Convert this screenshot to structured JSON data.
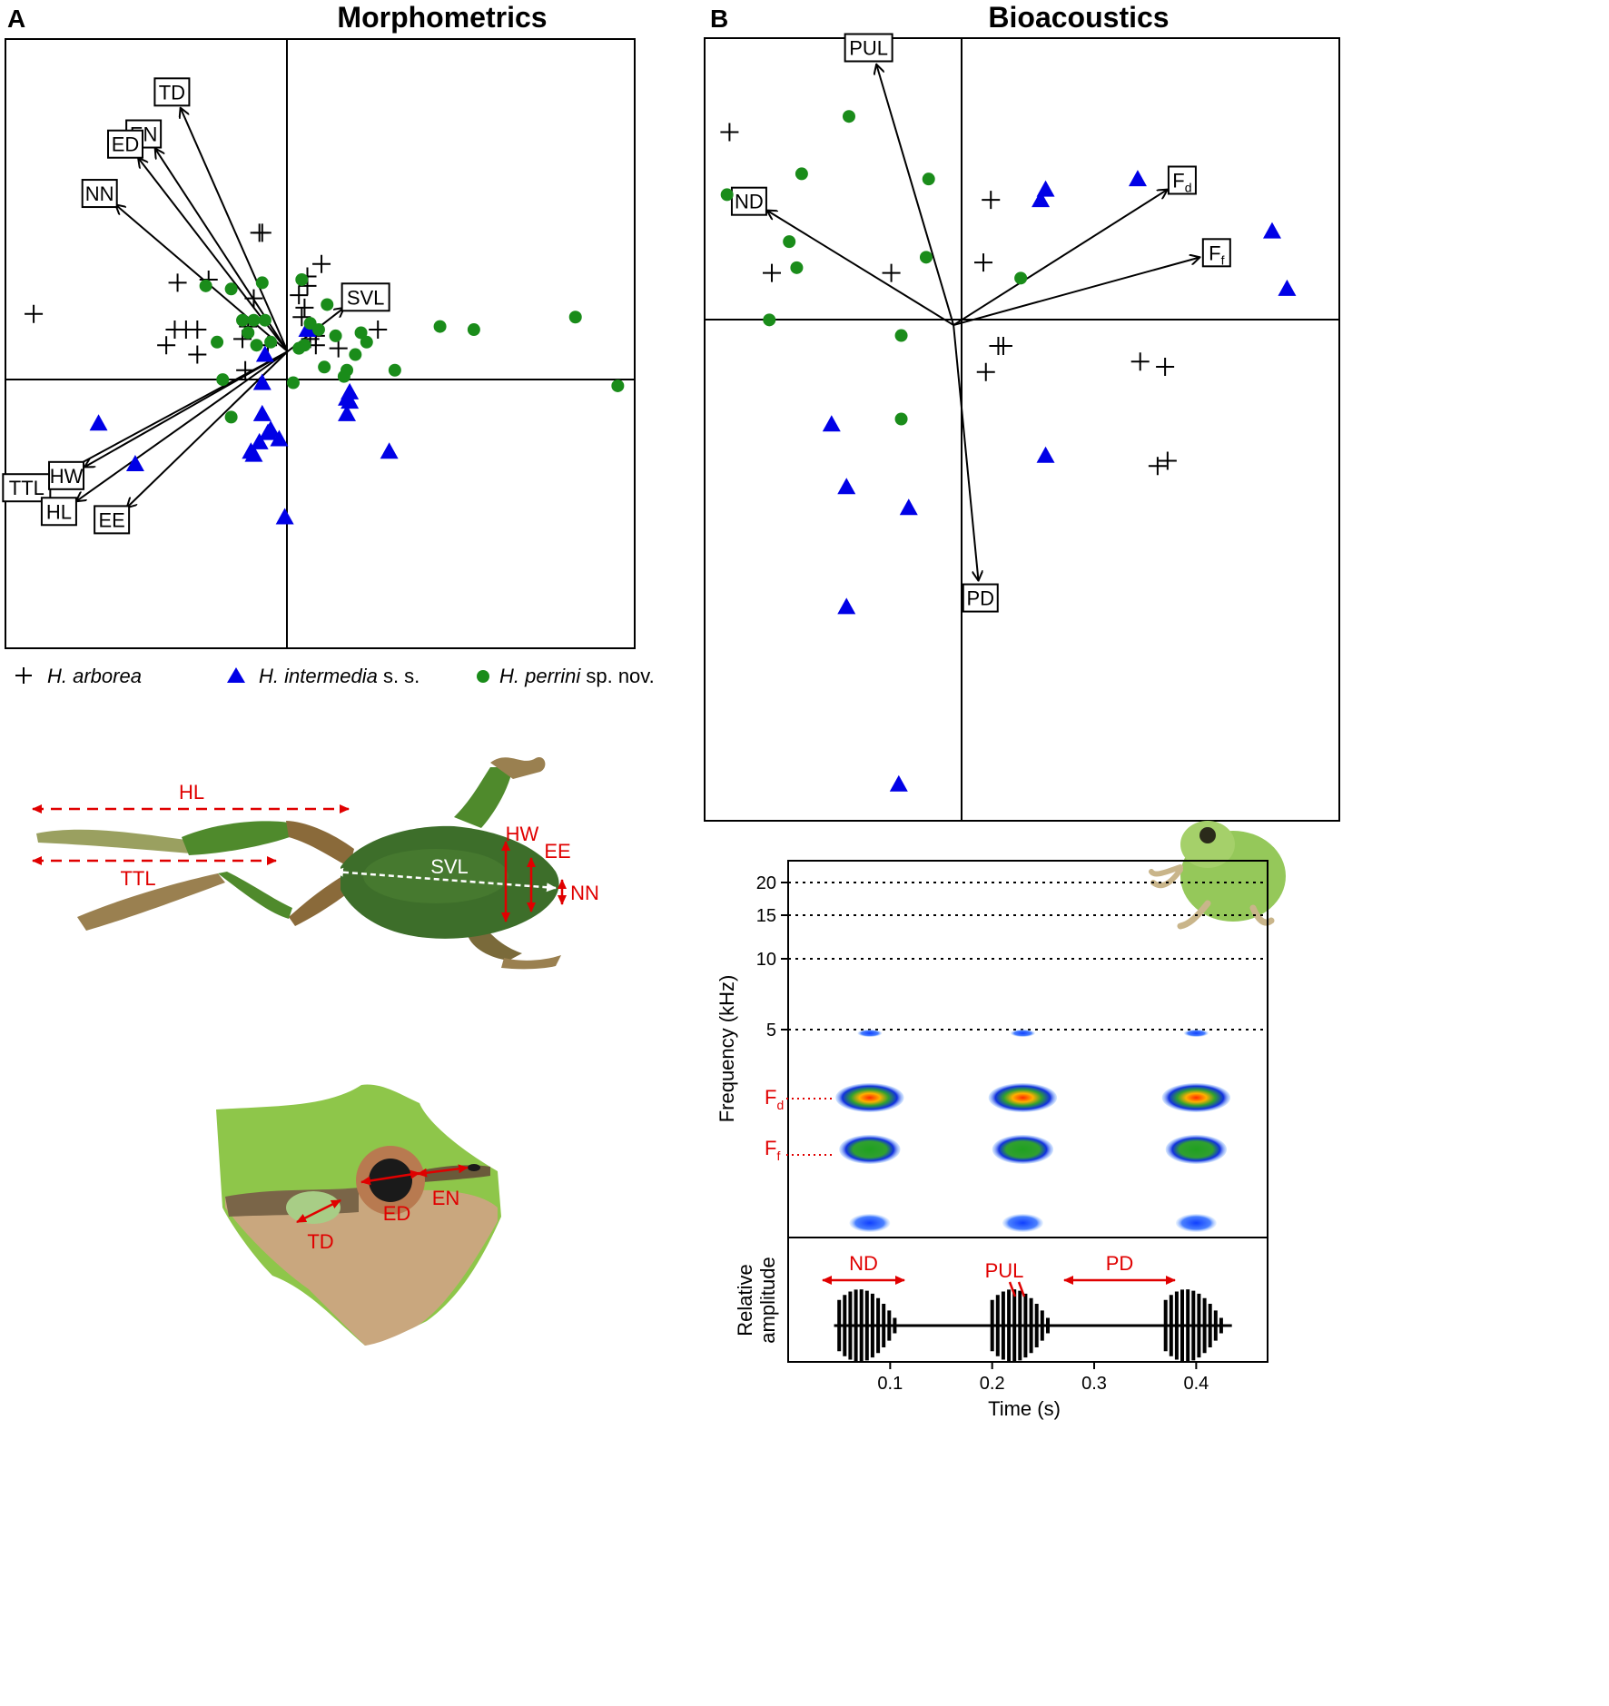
{
  "chart_data": [
    {
      "type": "scatter",
      "panel": "A",
      "title": "Morphometrics",
      "xlim": [
        -1.0,
        1.23
      ],
      "ylim": [
        -0.95,
        1.0
      ],
      "points": {
        "H. arborea": [
          [
            -0.9,
            0.12
          ],
          [
            -0.39,
            0.22
          ],
          [
            -0.28,
            0.23
          ],
          [
            -0.09,
            0.38
          ],
          [
            -0.1,
            0.38
          ],
          [
            -0.4,
            0.07
          ],
          [
            -0.36,
            0.07
          ],
          [
            -0.43,
            0.02
          ],
          [
            -0.32,
            0.07
          ],
          [
            -0.32,
            -0.01
          ],
          [
            -0.16,
            0.04
          ],
          [
            -0.15,
            -0.06
          ],
          [
            -0.14,
            0.08
          ],
          [
            -0.12,
            0.17
          ],
          [
            -0.07,
            0.02
          ],
          [
            0.07,
            0.21
          ],
          [
            0.07,
            0.24
          ],
          [
            0.04,
            0.18
          ],
          [
            0.12,
            0.28
          ],
          [
            0.06,
            0.14
          ],
          [
            0.05,
            0.11
          ],
          [
            0.08,
            0.04
          ],
          [
            0.18,
            0.01
          ],
          [
            0.32,
            0.07
          ],
          [
            0.1,
            0.05
          ],
          [
            0.1,
            0.02
          ]
        ],
        "H. intermedia s. s.": [
          [
            -0.67,
            -0.23
          ],
          [
            -0.54,
            -0.36
          ],
          [
            0.07,
            0.07
          ],
          [
            -0.09,
            -0.1
          ],
          [
            -0.09,
            -0.2
          ],
          [
            -0.06,
            -0.25
          ],
          [
            -0.1,
            -0.29
          ],
          [
            -0.12,
            -0.33
          ],
          [
            -0.13,
            -0.32
          ],
          [
            -0.03,
            -0.28
          ],
          [
            -0.07,
            -0.26
          ],
          [
            0.22,
            -0.13
          ],
          [
            0.21,
            -0.15
          ],
          [
            0.21,
            -0.2
          ],
          [
            0.36,
            -0.32
          ],
          [
            -0.01,
            -0.53
          ],
          [
            0.22,
            -0.16
          ],
          [
            -0.08,
            -0.01
          ]
        ],
        "H. perrini sp. nov.": [
          [
            -0.29,
            0.21
          ],
          [
            -0.2,
            0.2
          ],
          [
            -0.09,
            0.22
          ],
          [
            -0.16,
            0.1
          ],
          [
            -0.12,
            0.1
          ],
          [
            -0.08,
            0.1
          ],
          [
            -0.14,
            0.06
          ],
          [
            -0.25,
            0.03
          ],
          [
            -0.06,
            0.03
          ],
          [
            -0.11,
            0.02
          ],
          [
            -0.23,
            -0.09
          ],
          [
            -0.2,
            -0.21
          ],
          [
            0.05,
            0.23
          ],
          [
            0.14,
            0.15
          ],
          [
            0.08,
            0.09
          ],
          [
            0.11,
            0.07
          ],
          [
            0.17,
            0.05
          ],
          [
            0.26,
            0.06
          ],
          [
            0.28,
            0.03
          ],
          [
            0.24,
            -0.01
          ],
          [
            0.13,
            -0.05
          ],
          [
            0.21,
            -0.06
          ],
          [
            0.2,
            -0.08
          ],
          [
            0.38,
            -0.06
          ],
          [
            0.02,
            -0.1
          ],
          [
            0.54,
            0.08
          ],
          [
            0.66,
            0.07
          ],
          [
            1.02,
            0.11
          ],
          [
            1.17,
            -0.11
          ],
          [
            0.06,
            0.02
          ],
          [
            0.04,
            0.01
          ]
        ]
      },
      "loadings": [
        {
          "name": "TD",
          "x": -0.38,
          "y": 0.78
        },
        {
          "name": "EN",
          "x": -0.47,
          "y": 0.65
        },
        {
          "name": "ED",
          "x": -0.53,
          "y": 0.62
        },
        {
          "name": "NN",
          "x": -0.61,
          "y": 0.47
        },
        {
          "name": "SVL",
          "x": 0.2,
          "y": 0.14
        },
        {
          "name": "TTL",
          "x": -0.84,
          "y": -0.41
        },
        {
          "name": "HW",
          "x": -0.72,
          "y": -0.37
        },
        {
          "name": "HL",
          "x": -0.75,
          "y": -0.48
        },
        {
          "name": "EE",
          "x": -0.57,
          "y": -0.5
        }
      ]
    },
    {
      "type": "scatter",
      "panel": "B",
      "title": "Bioacoustics",
      "xlim": [
        -1.0,
        1.55
      ],
      "ylim": [
        -0.95,
        0.55
      ],
      "points": {
        "H. arborea": [
          [
            -0.9,
            0.37
          ],
          [
            -0.73,
            0.1
          ],
          [
            -0.25,
            0.1
          ],
          [
            0.15,
            0.24
          ],
          [
            0.12,
            0.12
          ],
          [
            0.2,
            -0.04
          ],
          [
            0.13,
            -0.09
          ],
          [
            0.75,
            -0.07
          ],
          [
            0.85,
            -0.08
          ],
          [
            0.82,
            -0.27
          ],
          [
            0.86,
            -0.26
          ],
          [
            0.18,
            -0.04
          ]
        ],
        "H. intermedia s. s.": [
          [
            0.37,
            0.26
          ],
          [
            0.74,
            0.28
          ],
          [
            1.28,
            0.18
          ],
          [
            1.34,
            0.07
          ],
          [
            0.35,
            0.24
          ],
          [
            -0.49,
            -0.19
          ],
          [
            -0.43,
            -0.31
          ],
          [
            -0.18,
            -0.35
          ],
          [
            0.37,
            -0.25
          ],
          [
            -0.43,
            -0.54
          ],
          [
            -0.22,
            -0.88
          ]
        ],
        "H. perrini sp. nov.": [
          [
            -0.42,
            0.4
          ],
          [
            -0.61,
            0.29
          ],
          [
            -0.91,
            0.25
          ],
          [
            -0.66,
            0.16
          ],
          [
            -0.63,
            0.11
          ],
          [
            -0.74,
            0.01
          ],
          [
            -0.1,
            0.28
          ],
          [
            -0.11,
            0.13
          ],
          [
            0.27,
            0.09
          ],
          [
            -0.21,
            -0.02
          ],
          [
            -0.21,
            -0.18
          ]
        ]
      },
      "loadings": [
        {
          "name": "PUL",
          "x": -0.31,
          "y": 0.5
        },
        {
          "name": "ND",
          "x": -0.75,
          "y": 0.22
        },
        {
          "name": "Fd",
          "x": 0.86,
          "y": 0.26
        },
        {
          "name": "Ff",
          "x": 0.99,
          "y": 0.13
        },
        {
          "name": "PD",
          "x": 0.1,
          "y": -0.49
        }
      ]
    },
    {
      "type": "spectrogram",
      "xlabel": "Time (s)",
      "ylabel": "Frequency (kHz)",
      "amplitude_ylabel": [
        "Relative",
        "amplitude"
      ],
      "x_ticks": [
        0.1,
        0.2,
        0.3,
        0.4
      ],
      "y_ticks": [
        5,
        10,
        15,
        20
      ],
      "xlim": [
        0.0,
        0.47
      ],
      "pulse_groups_s": [
        [
          0.05,
          0.11
        ],
        [
          0.2,
          0.26
        ],
        [
          0.37,
          0.43
        ]
      ]
    }
  ],
  "panel_a": {
    "label": "A",
    "title": "Morphometrics"
  },
  "panel_b": {
    "label": "B",
    "title": "Bioacoustics"
  },
  "legend": {
    "arborea": {
      "name": "H. arborea",
      "suffix": ""
    },
    "intermedia": {
      "name": "H. intermedia",
      "suffix": " s. s."
    },
    "perrini": {
      "name": "H. perrini",
      "suffix": " sp. nov."
    }
  },
  "colors": {
    "arborea": "#000000",
    "intermedia": "#0000e6",
    "perrini": "#1a8c1a",
    "annotation": "#e00000"
  },
  "frog_body": {
    "HL": "HL",
    "TTL": "TTL",
    "SVL": "SVL",
    "HW": "HW",
    "EE": "EE",
    "NN": "NN"
  },
  "frog_head": {
    "TD": "TD",
    "ED": "ED",
    "EN": "EN"
  },
  "spectro_labels": {
    "Fd": "F",
    "Fd_sub": "d",
    "Ff": "F",
    "Ff_sub": "f",
    "ND": "ND",
    "PUL": "PUL",
    "PD": "PD"
  }
}
